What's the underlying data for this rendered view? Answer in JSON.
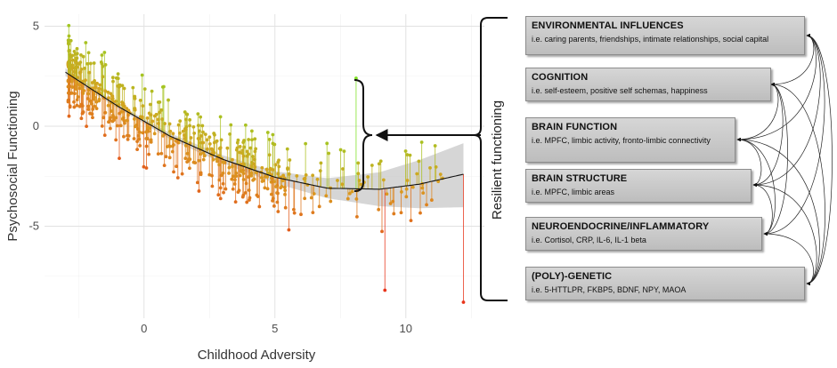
{
  "chart_data": {
    "type": "scatter",
    "xlabel": "Childhood Adversity",
    "ylabel": "Psychosocial Functioning",
    "xlim": [
      -3.8,
      13
    ],
    "ylim": [
      -9.6,
      5.6
    ],
    "x_ticks": [
      0,
      5,
      10
    ],
    "y_ticks": [
      5,
      0,
      -5
    ],
    "grid": true,
    "fit_curve": {
      "x": [
        -3.0,
        -1,
        1,
        3,
        5,
        7,
        9,
        10.5,
        12.2
      ],
      "y": [
        2.7,
        1.0,
        -0.5,
        -1.65,
        -2.55,
        -3.1,
        -3.15,
        -2.9,
        -2.4
      ]
    },
    "confidence_band": {
      "x": [
        -3.0,
        -1,
        1,
        3,
        5,
        7,
        9,
        10.5,
        12.2
      ],
      "upper": [
        2.9,
        1.1,
        -0.35,
        -1.45,
        -2.25,
        -2.6,
        -2.3,
        -1.7,
        -0.85
      ],
      "lower": [
        2.5,
        0.9,
        -0.65,
        -1.85,
        -2.85,
        -3.6,
        -4.0,
        -4.1,
        -4.05
      ]
    },
    "n_points": 600,
    "highlighted_range": {
      "x": [
        8.1,
        8.1
      ],
      "y_top": 2.4,
      "y_bottom": -3.2
    },
    "color_scale": {
      "high": "#7fe024",
      "mid": "#d9a020",
      "low": "#e8341a"
    }
  },
  "bracket_label": "Resilient functioning",
  "factors": [
    {
      "title": "ENVIRONMENTAL INFLUENCES",
      "desc": "i.e. caring parents, friendships, intimate relationships, social capital"
    },
    {
      "title": "COGNITION",
      "desc": "i.e. self-esteem, positive self schemas, happiness"
    },
    {
      "title": "BRAIN FUNCTION",
      "desc": "i.e. MPFC, limbic activity, fronto-limbic connectivity"
    },
    {
      "title": "BRAIN STRUCTURE",
      "desc": "i.e. MPFC, limbic areas"
    },
    {
      "title": "NEUROENDOCRINE/INFLAMMATORY",
      "desc": "i.e. Cortisol, CRP, IL-6, IL-1 beta"
    },
    {
      "title": "(POLY)-GENETIC",
      "desc": "i.e. 5-HTTLPR, FKBP5, BDNF, NPY, MAOA"
    }
  ]
}
